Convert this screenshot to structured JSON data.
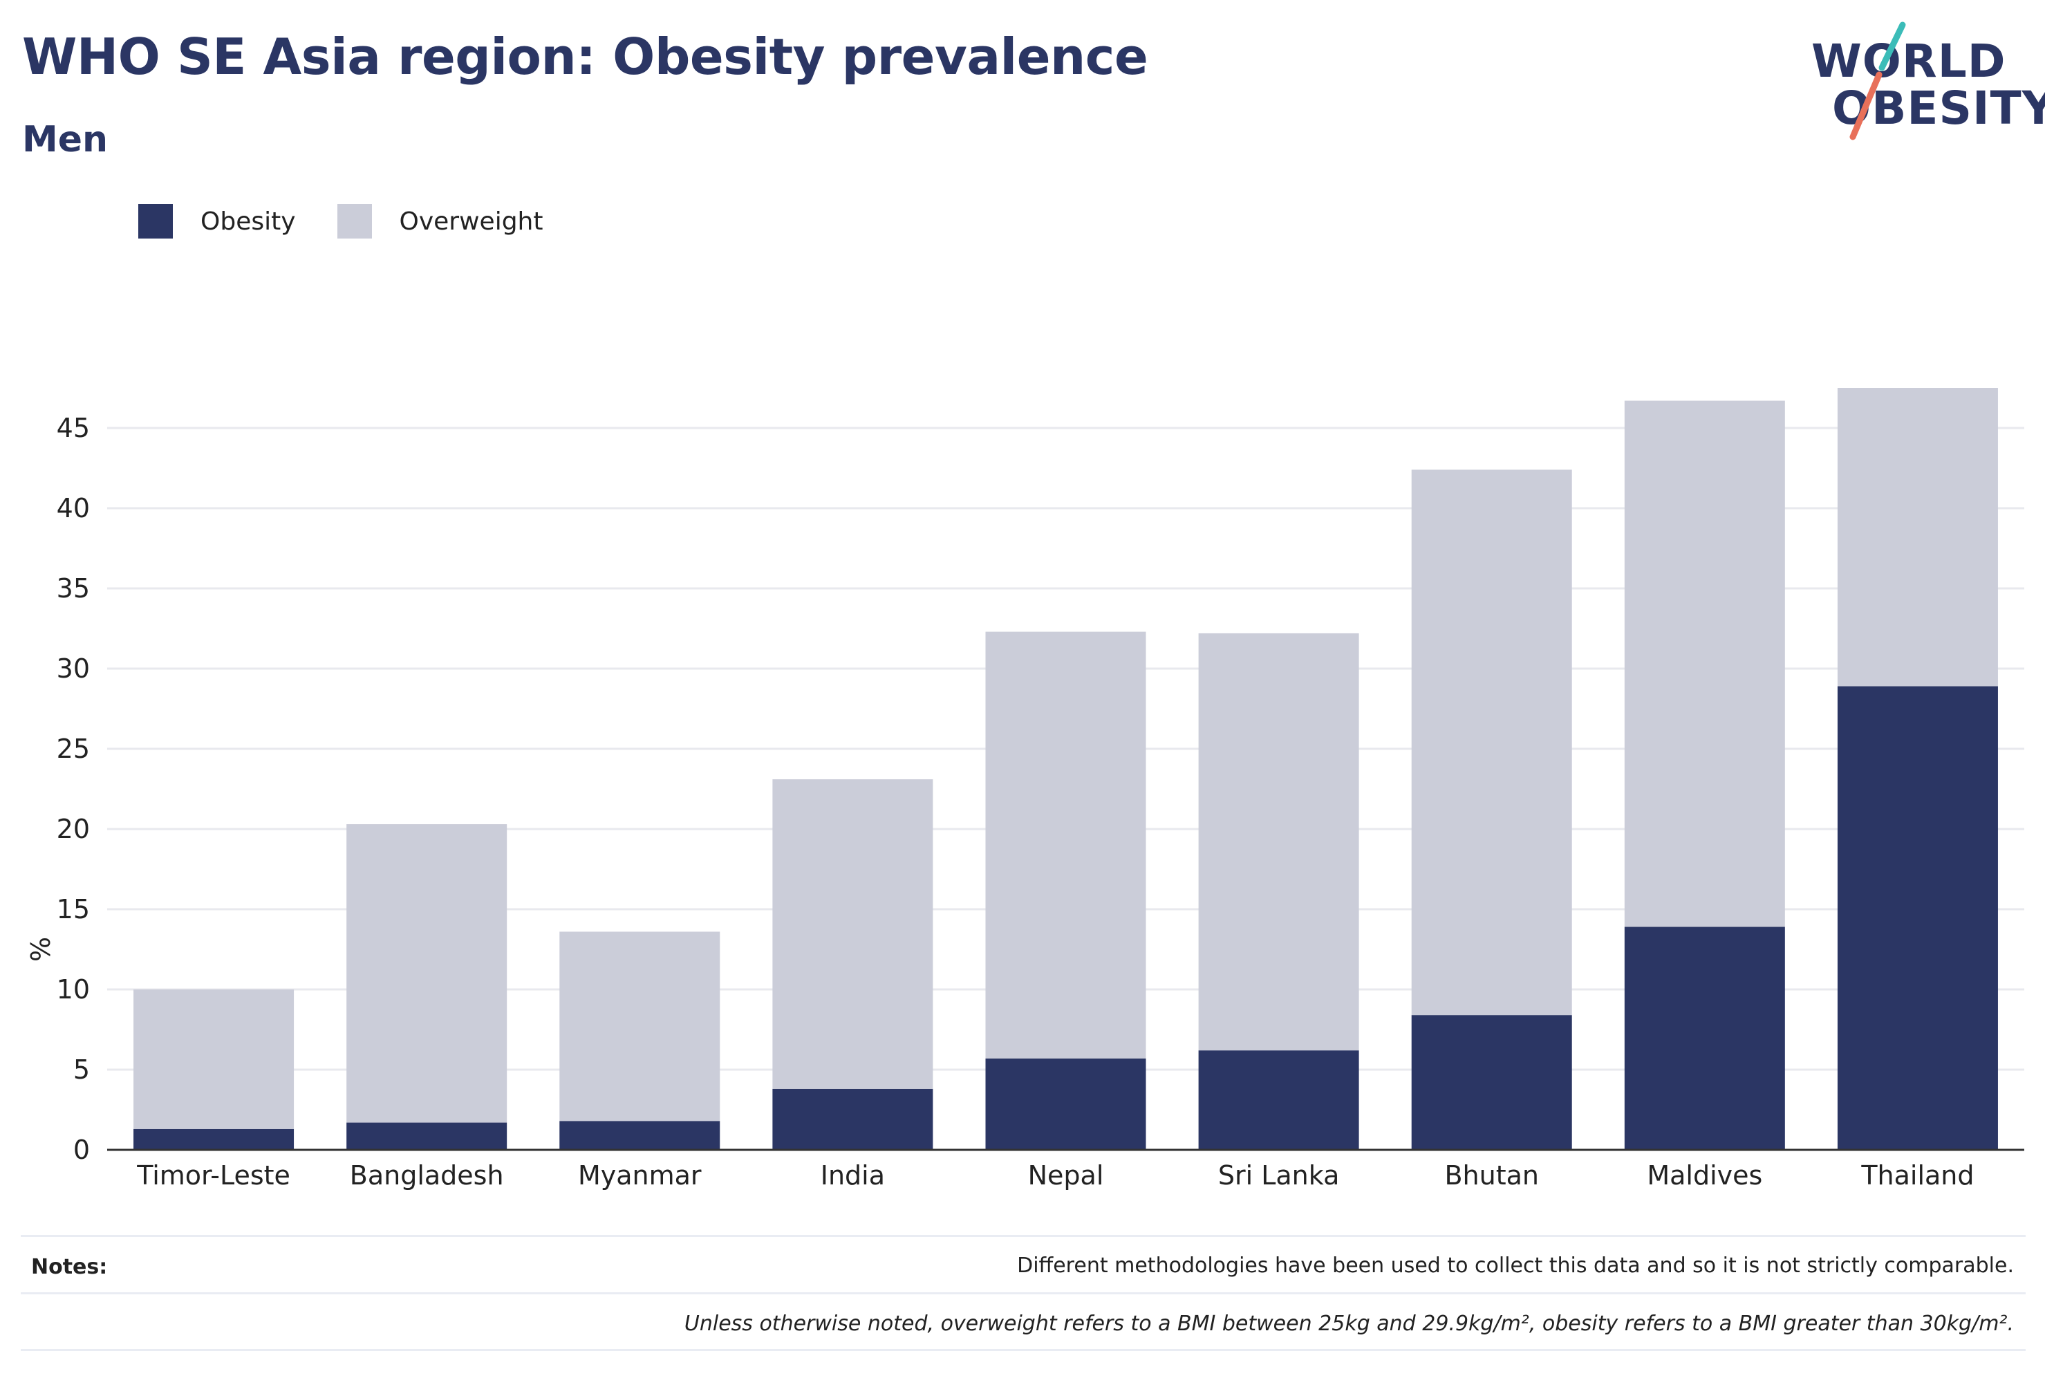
{
  "header": {
    "title": "WHO SE Asia region: Obesity prevalence",
    "subtitle": "Men"
  },
  "logo": {
    "line1": "WORLD",
    "line2": "OBESITY",
    "colors": {
      "teal": "#3bbcb8",
      "coral": "#e8705a",
      "navy": "#2b3664"
    }
  },
  "legend": [
    {
      "label": "Obesity",
      "color": "#2b3664"
    },
    {
      "label": "Overweight",
      "color": "#cbcdd9"
    }
  ],
  "chart_data": {
    "type": "bar",
    "stacked": true,
    "categories": [
      "Timor-Leste",
      "Bangladesh",
      "Myanmar",
      "India",
      "Nepal",
      "Sri Lanka",
      "Bhutan",
      "Maldives",
      "Thailand"
    ],
    "series": [
      {
        "name": "Obesity",
        "color": "#2b3664",
        "values": [
          1.3,
          1.7,
          1.8,
          3.8,
          5.7,
          6.2,
          8.4,
          13.9,
          28.9
        ]
      },
      {
        "name": "Overweight",
        "color": "#cbcdd9",
        "values": [
          8.7,
          18.6,
          11.8,
          19.3,
          26.6,
          26.0,
          34.0,
          32.8,
          18.6
        ]
      }
    ],
    "ylabel": "%",
    "ylim": [
      0,
      50
    ],
    "yticks": [
      0,
      5,
      10,
      15,
      20,
      25,
      30,
      35,
      40,
      45
    ],
    "grid": true,
    "legend_position": "top-left"
  },
  "notes": {
    "label": "Notes:",
    "text": "Different methodologies have been used to collect this data and so it is not strictly comparable.",
    "definition": "Unless otherwise noted, overweight refers to a BMI between 25kg and 29.9kg/m², obesity refers to a BMI greater than 30kg/m²."
  }
}
